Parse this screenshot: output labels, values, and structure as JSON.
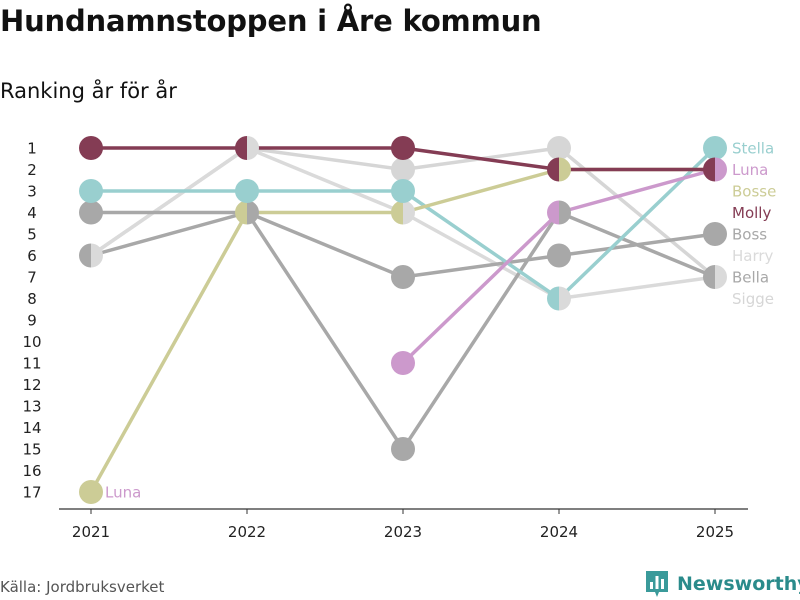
{
  "header": {
    "title": "Hundnamnstoppen i Åre kommun",
    "subtitle": "Ranking år för år"
  },
  "footer": {
    "source": "Källa: Jordbruksverket",
    "brand": "Newsworthy"
  },
  "chart_data": {
    "type": "line",
    "subtype": "bump",
    "title": "Hundnamnstoppen i Åre kommun",
    "subtitle": "Ranking år för år",
    "x": [
      "2021",
      "2022",
      "2023",
      "2024",
      "2025"
    ],
    "y_ticks": [
      "1",
      "2",
      "3",
      "4",
      "5",
      "6",
      "7",
      "8",
      "9",
      "10",
      "11",
      "12",
      "13",
      "14",
      "15",
      "16",
      "17"
    ],
    "ylim": [
      1,
      17
    ],
    "y_reversed": true,
    "grid": false,
    "series": [
      {
        "name": "Sigge",
        "color": "#d6d6d6",
        "values": [
          6,
          1,
          2,
          1,
          7
        ]
      },
      {
        "name": "Harry",
        "color": "#dadada",
        "values": [
          6,
          1,
          4,
          8,
          7
        ]
      },
      {
        "name": "Boss",
        "color": "#a8a8a8",
        "values": [
          6,
          4,
          7,
          6,
          5
        ]
      },
      {
        "name": "Bella",
        "color": "#a8a8a8",
        "values": [
          4,
          4,
          15,
          4,
          7
        ]
      },
      {
        "name": "Stella",
        "color": "#99cfcf",
        "values": [
          3,
          3,
          3,
          8,
          1
        ]
      },
      {
        "name": "Bosse",
        "color": "#cccc96",
        "values": [
          17,
          4,
          4,
          2,
          2
        ]
      },
      {
        "name": "Luna",
        "color": "#cc99cc",
        "values": [
          null,
          null,
          11,
          4,
          2
        ]
      },
      {
        "name": "Molly",
        "color": "#843c54",
        "values": [
          1,
          1,
          1,
          2,
          2
        ]
      }
    ],
    "end_labels": [
      "Stella",
      "Luna",
      "Bosse",
      "Molly",
      "Boss",
      "Harry",
      "Bella",
      "Sigge"
    ],
    "annotations": [
      {
        "text": "Luna",
        "x": "2021",
        "y": 17
      }
    ]
  }
}
